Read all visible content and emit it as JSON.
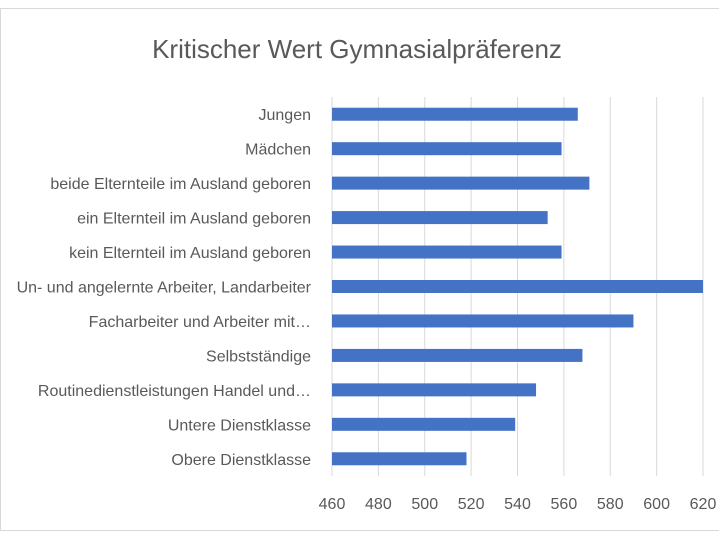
{
  "chart_data": {
    "type": "bar",
    "orientation": "horizontal",
    "title": "Kritischer Wert Gymnasialpräferenz",
    "categories": [
      "Jungen",
      "Mädchen",
      "beide Elternteile im Ausland geboren",
      "ein Elternteil im Ausland geboren",
      "kein Elternteil im Ausland geboren",
      "Un- und angelernte Arbeiter, Landarbeiter",
      "Facharbeiter und Arbeiter mit…",
      "Selbstständige",
      "Routinedienstleistungen Handel und…",
      "Untere Dienstklasse",
      "Obere Dienstklasse"
    ],
    "values": [
      566,
      559,
      571,
      553,
      559,
      620,
      590,
      568,
      548,
      539,
      518
    ],
    "xlim": [
      460,
      620
    ],
    "xticks": [
      "460",
      "480",
      "500",
      "520",
      "540",
      "560",
      "580",
      "600",
      "620"
    ],
    "grid": true,
    "legend": "none",
    "bar_color": "#4472c4"
  }
}
